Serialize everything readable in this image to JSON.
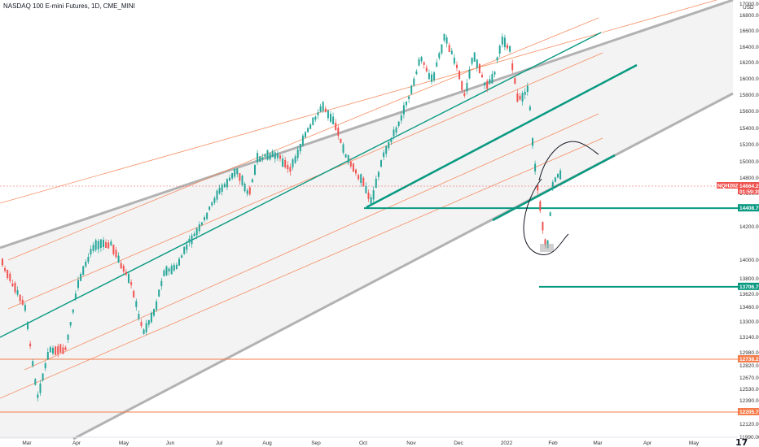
{
  "header": {
    "title": "NASDAQ 100 E-mini Futures, 1D, CME_MINI"
  },
  "axis": {
    "currency": "USD",
    "logo_text": "17"
  },
  "chart_data": {
    "type": "candlestick",
    "symbol": "NQH2022",
    "y_ticks": [
      11990.0,
      12120.0,
      12250.0,
      12390.0,
      12530.0,
      12670.0,
      12820.0,
      12980.0,
      13140.0,
      13300.0,
      13460.0,
      13620.0,
      13800.0,
      14000.0,
      14200.0,
      14400.0,
      14600.0,
      14800.0,
      15000.0,
      15200.0,
      15400.0,
      15600.0,
      15800.0,
      16000.0,
      16200.0,
      16400.0,
      16600.0,
      16800.0,
      17000.0
    ],
    "x_ticks": [
      "Mar",
      "Apr",
      "May",
      "Jun",
      "Jul",
      "Aug",
      "Sep",
      "Oct",
      "Nov",
      "Dec",
      "2022",
      "Feb",
      "Mar",
      "Apr",
      "May"
    ],
    "price_tags": [
      {
        "label": "NQH2022",
        "value": "14664.25",
        "sub": "01:59:39",
        "color": "#ef5350"
      },
      {
        "label": "",
        "value": "14408.75",
        "sub": "",
        "color": "#089981"
      },
      {
        "label": "",
        "value": "13706.75",
        "sub": "",
        "color": "#089981"
      },
      {
        "label": "",
        "value": "12738.25",
        "sub": "",
        "color": "#f57c4a"
      },
      {
        "label": "",
        "value": "12205.75",
        "sub": "",
        "color": "#f57c4a"
      }
    ],
    "horizontal_levels": [
      {
        "value": 14408.75,
        "color": "#089981"
      },
      {
        "value": 13706.75,
        "color": "#089981"
      },
      {
        "value": 12738.25,
        "color": "#f57c4a"
      },
      {
        "value": 12205.75,
        "color": "#f57c4a"
      }
    ]
  }
}
